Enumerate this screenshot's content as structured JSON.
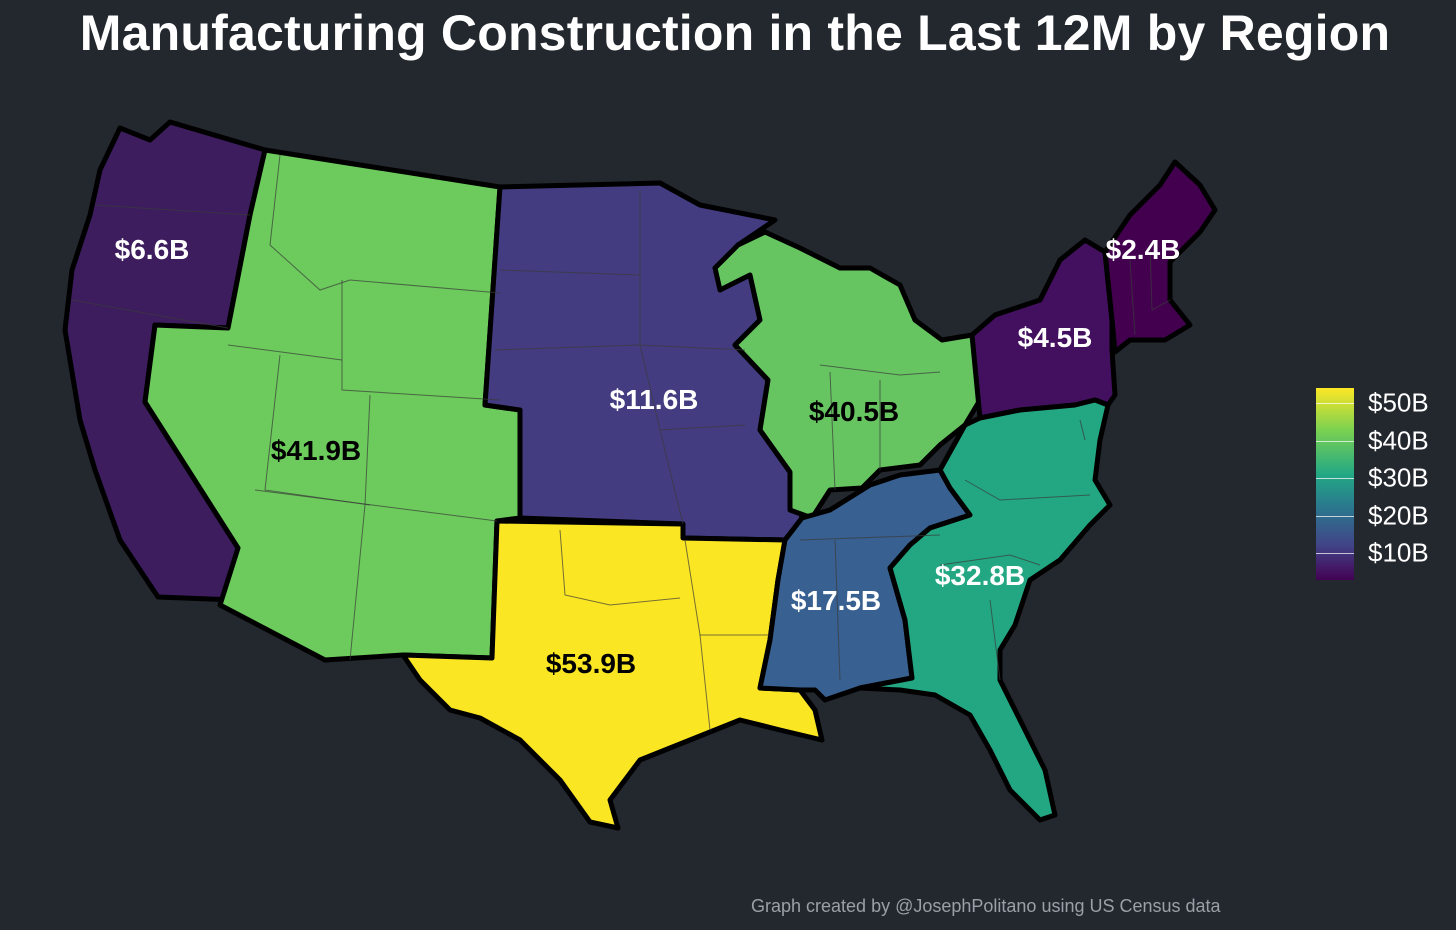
{
  "title": "Manufacturing Construction in the Last 12M by Region",
  "caption": "Graph created by @JosephPolitano using US Census data",
  "regions": [
    {
      "name": "Pacific",
      "value": 6.6,
      "label": "$6.6B"
    },
    {
      "name": "Mountain",
      "value": 41.9,
      "label": "$41.9B"
    },
    {
      "name": "West North Central",
      "value": 11.6,
      "label": "$11.6B"
    },
    {
      "name": "East North Central",
      "value": 40.5,
      "label": "$40.5B"
    },
    {
      "name": "Middle Atlantic",
      "value": 4.5,
      "label": "$4.5B"
    },
    {
      "name": "New England",
      "value": 2.4,
      "label": "$2.4B"
    },
    {
      "name": "West South Central",
      "value": 53.9,
      "label": "$53.9B"
    },
    {
      "name": "East South Central",
      "value": 17.5,
      "label": "$17.5B"
    },
    {
      "name": "South Atlantic",
      "value": 32.8,
      "label": "$32.8B"
    }
  ],
  "legend": {
    "scale": "viridis",
    "range": [
      2.4,
      53.9
    ],
    "ticks": [
      {
        "value": 50,
        "label": "$50B"
      },
      {
        "value": 40,
        "label": "$40B"
      },
      {
        "value": 30,
        "label": "$30B"
      },
      {
        "value": 20,
        "label": "$20B"
      },
      {
        "value": 10,
        "label": "$10B"
      }
    ]
  },
  "colors": {
    "background": "#23272e",
    "pacific": "#3d1d5e",
    "mountain": "#6ccb5c",
    "west_north_central": "#433c80",
    "east_north_central": "#67c561",
    "middle_atlantic": "#43105f",
    "new_england": "#42004f",
    "west_south_central": "#fbe623",
    "east_south_central": "#386090",
    "south_atlantic": "#22a782"
  }
}
